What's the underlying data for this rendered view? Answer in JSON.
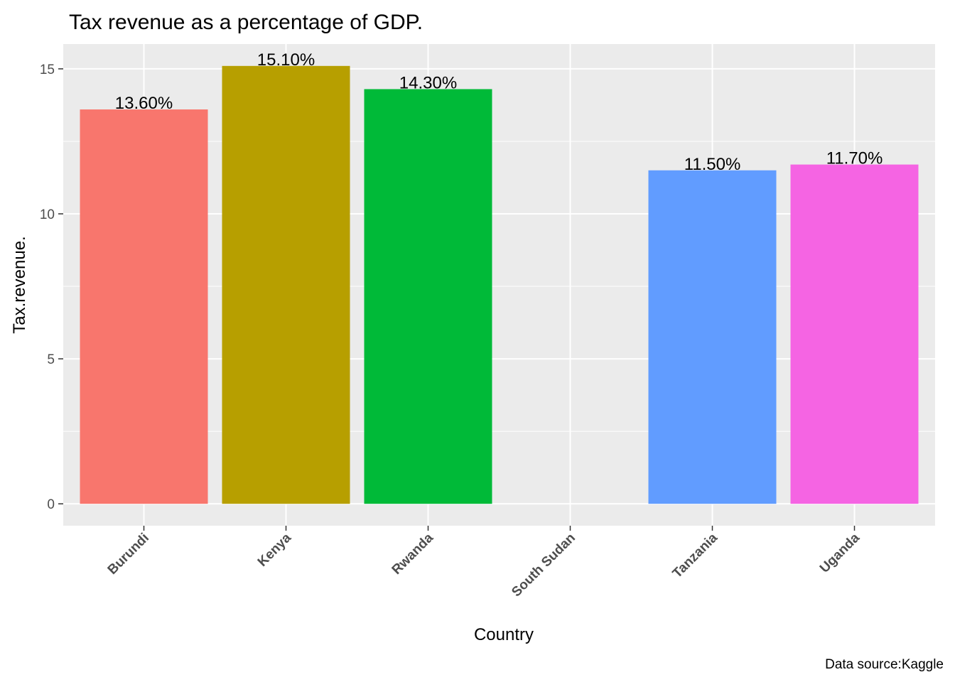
{
  "chart_data": {
    "type": "bar",
    "title": "Tax revenue as a percentage of GDP.",
    "xlabel": "Country",
    "ylabel": "Tax.revenue.",
    "caption": "Data source:Kaggle",
    "categories": [
      "Burundi",
      "Kenya",
      "Rwanda",
      "South Sudan",
      "Tanzania",
      "Uganda"
    ],
    "values": [
      13.6,
      15.1,
      14.3,
      null,
      11.5,
      11.7
    ],
    "data_labels": [
      "13.60%",
      "15.10%",
      "14.30%",
      "",
      "11.50%",
      "11.70%"
    ],
    "colors": [
      "#F8766D",
      "#B79F00",
      "#00BA38",
      "#00BFC4",
      "#619CFF",
      "#F564E3"
    ],
    "y_ticks": [
      0,
      5,
      10,
      15
    ],
    "y_tick_labels": [
      "0",
      "5",
      "10",
      "15"
    ],
    "ylim": [
      -0.755,
      15.855
    ],
    "grid": true,
    "legend": "none",
    "panel_background": "#EBEBEB",
    "grid_color": "#FFFFFF"
  }
}
